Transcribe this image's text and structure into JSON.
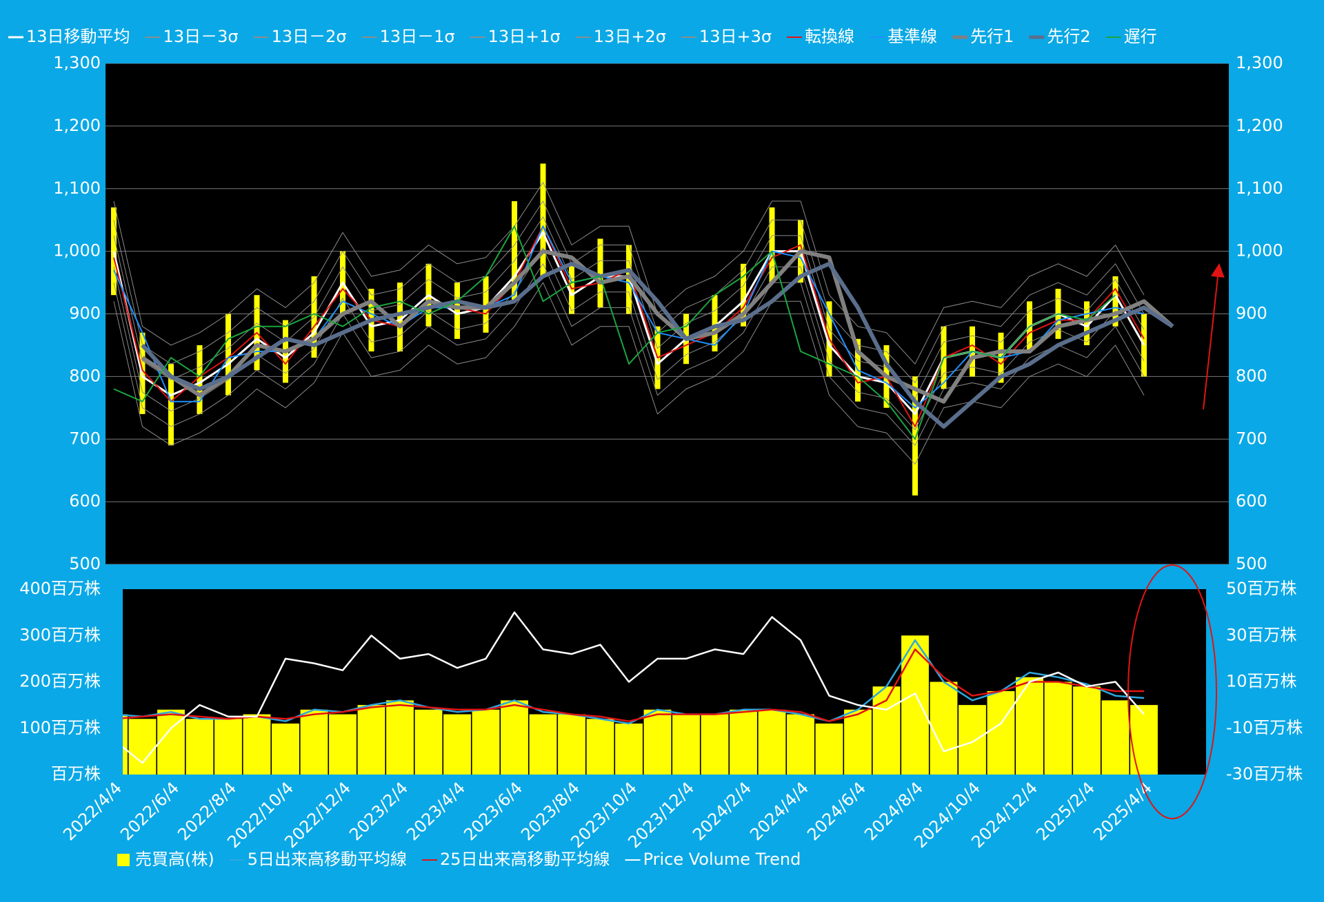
{
  "chart_data": [
    {
      "type": "line",
      "ylim": [
        500,
        1300
      ],
      "yticks": [
        500,
        600,
        700,
        800,
        900,
        {
          "value": 1000,
          "label": "1,000"
        },
        {
          "value": 1100,
          "label": "1,100"
        },
        {
          "value": 1200,
          "label": "1,200"
        },
        {
          "value": 1300,
          "label": "1,300"
        }
      ],
      "y2lim": [
        500,
        1300
      ],
      "y2ticks": [
        500,
        600,
        700,
        800,
        900,
        {
          "value": 1000,
          "label": "1,000"
        },
        {
          "value": 1100,
          "label": "1,100"
        },
        {
          "value": 1200,
          "label": "1,200"
        },
        {
          "value": 1300,
          "label": "1,300"
        }
      ],
      "grid": true,
      "candles": {
        "color": "#ffff00",
        "high": [
          1070,
          870,
          820,
          850,
          900,
          930,
          890,
          960,
          1000,
          940,
          950,
          980,
          950,
          960,
          1080,
          1140,
          980,
          1020,
          1010,
          880,
          900,
          930,
          980,
          1070,
          1050,
          920,
          860,
          850,
          800,
          880,
          880,
          870,
          920,
          940,
          920,
          960,
          900,
          null
        ],
        "low": [
          930,
          740,
          690,
          740,
          770,
          810,
          790,
          830,
          900,
          840,
          840,
          880,
          860,
          870,
          920,
          960,
          900,
          910,
          900,
          780,
          820,
          840,
          880,
          950,
          950,
          800,
          760,
          750,
          610,
          780,
          800,
          790,
          840,
          860,
          850,
          880,
          800,
          null
        ]
      },
      "series": [
        {
          "name": "13日移動平均",
          "color": "#ffffff",
          "width": 3,
          "values": [
            1000,
            800,
            770,
            790,
            820,
            860,
            830,
            870,
            950,
            880,
            890,
            930,
            900,
            910,
            960,
            1030,
            930,
            960,
            960,
            820,
            860,
            880,
            920,
            1000,
            1000,
            850,
            800,
            790,
            740,
            830,
            840,
            830,
            880,
            900,
            880,
            930,
            850,
            null
          ]
        },
        {
          "name": "13日－3σ",
          "color": "#8c8c8c",
          "width": 1,
          "values": [
            920,
            720,
            690,
            710,
            740,
            780,
            750,
            790,
            870,
            800,
            810,
            850,
            820,
            830,
            880,
            950,
            850,
            880,
            880,
            740,
            780,
            800,
            840,
            920,
            920,
            770,
            720,
            710,
            660,
            750,
            760,
            750,
            800,
            820,
            800,
            850,
            770,
            null
          ]
        },
        {
          "name": "13日－2σ",
          "color": "#8c8c8c",
          "width": 1,
          "values": [
            950,
            750,
            720,
            740,
            770,
            810,
            780,
            820,
            900,
            830,
            840,
            880,
            850,
            860,
            910,
            980,
            880,
            910,
            910,
            770,
            810,
            830,
            870,
            950,
            950,
            800,
            750,
            740,
            690,
            780,
            790,
            780,
            830,
            850,
            830,
            880,
            800,
            null
          ]
        },
        {
          "name": "13日－1σ",
          "color": "#8c8c8c",
          "width": 1,
          "values": [
            975,
            775,
            745,
            765,
            795,
            835,
            805,
            845,
            925,
            855,
            865,
            905,
            875,
            885,
            935,
            1005,
            905,
            935,
            935,
            795,
            835,
            855,
            895,
            975,
            975,
            825,
            775,
            765,
            715,
            805,
            815,
            805,
            855,
            875,
            855,
            905,
            825,
            null
          ]
        },
        {
          "name": "13日+1σ",
          "color": "#8c8c8c",
          "width": 1,
          "values": [
            1025,
            825,
            795,
            815,
            845,
            885,
            855,
            895,
            975,
            905,
            915,
            955,
            925,
            935,
            985,
            1055,
            955,
            985,
            985,
            845,
            885,
            905,
            945,
            1025,
            1025,
            875,
            825,
            815,
            765,
            855,
            865,
            855,
            905,
            925,
            905,
            955,
            875,
            null
          ]
        },
        {
          "name": "13日+2σ",
          "color": "#8c8c8c",
          "width": 1,
          "values": [
            1050,
            850,
            820,
            840,
            870,
            910,
            880,
            920,
            1000,
            930,
            940,
            980,
            950,
            960,
            1010,
            1080,
            980,
            1010,
            1010,
            870,
            910,
            930,
            970,
            1050,
            1050,
            900,
            850,
            840,
            790,
            880,
            890,
            880,
            930,
            950,
            930,
            980,
            900,
            null
          ]
        },
        {
          "name": "13日+3σ",
          "color": "#8c8c8c",
          "width": 1,
          "values": [
            1080,
            880,
            850,
            870,
            900,
            940,
            910,
            950,
            1030,
            960,
            970,
            1010,
            980,
            990,
            1040,
            1110,
            1010,
            1040,
            1040,
            900,
            940,
            960,
            1000,
            1080,
            1080,
            930,
            880,
            870,
            820,
            910,
            920,
            910,
            960,
            980,
            960,
            1010,
            930,
            null
          ]
        },
        {
          "name": "転換線",
          "color": "#e01414",
          "width": 2,
          "values": [
            990,
            810,
            760,
            800,
            830,
            870,
            820,
            880,
            940,
            890,
            880,
            920,
            910,
            900,
            950,
            1040,
            940,
            950,
            970,
            830,
            850,
            870,
            910,
            990,
            1010,
            860,
            790,
            800,
            720,
            830,
            850,
            820,
            870,
            890,
            890,
            940,
            860,
            null
          ]
        },
        {
          "name": "基準線",
          "color": "#1e90ff",
          "width": 2,
          "values": [
            970,
            870,
            760,
            760,
            830,
            840,
            840,
            860,
            920,
            900,
            880,
            910,
            910,
            910,
            930,
            1040,
            950,
            960,
            950,
            870,
            860,
            850,
            900,
            1000,
            990,
            900,
            810,
            790,
            750,
            790,
            840,
            830,
            840,
            890,
            900,
            910,
            900,
            null
          ]
        },
        {
          "name": "先行1",
          "color": "#808080",
          "width": 6,
          "values": [
            null,
            830,
            800,
            770,
            800,
            850,
            840,
            860,
            900,
            920,
            880,
            920,
            910,
            910,
            950,
            1000,
            990,
            950,
            960,
            900,
            860,
            870,
            900,
            950,
            1000,
            990,
            840,
            800,
            780,
            760,
            830,
            840,
            840,
            880,
            890,
            900,
            920,
            880
          ]
        },
        {
          "name": "先行2",
          "color": "#5a6e8c",
          "width": 6,
          "values": [
            null,
            850,
            800,
            780,
            800,
            830,
            860,
            850,
            870,
            890,
            900,
            910,
            920,
            910,
            920,
            960,
            980,
            960,
            970,
            920,
            860,
            880,
            890,
            920,
            960,
            980,
            910,
            820,
            760,
            720,
            760,
            800,
            820,
            850,
            870,
            890,
            910,
            880
          ]
        },
        {
          "name": "遅行",
          "color": "#1aa640",
          "width": 2,
          "values": [
            780,
            760,
            830,
            800,
            860,
            880,
            880,
            900,
            880,
            910,
            920,
            900,
            920,
            960,
            1040,
            920,
            950,
            960,
            820,
            870,
            880,
            930,
            960,
            1000,
            840,
            820,
            800,
            760,
            700,
            830,
            840,
            830,
            880,
            900,
            890,
            930,
            null,
            null
          ]
        }
      ]
    },
    {
      "type": "bar",
      "categories": [
        "2022/4/4",
        null,
        "2022/6/4",
        null,
        "2022/8/4",
        null,
        "2022/10/4",
        null,
        "2022/12/4",
        null,
        "2023/2/4",
        null,
        "2023/4/4",
        null,
        "2023/6/4",
        null,
        "2023/8/4",
        null,
        "2023/10/4",
        null,
        "2023/12/4",
        null,
        "2024/2/4",
        null,
        "2024/4/4",
        null,
        "2024/6/4",
        null,
        "2024/8/4",
        null,
        "2024/10/4",
        null,
        "2024/12/4",
        null,
        "2025/2/4",
        null,
        "2025/4/4",
        null
      ],
      "ylim": [
        0,
        400
      ],
      "yticks": [
        {
          "value": 0,
          "label": "百万株"
        },
        {
          "value": 100,
          "label": "100百万株"
        },
        {
          "value": 200,
          "label": "200百万株"
        },
        {
          "value": 300,
          "label": "300百万株"
        },
        {
          "value": 400,
          "label": "400百万株"
        }
      ],
      "y2lim": [
        -30,
        50
      ],
      "y2ticks": [
        {
          "value": -30,
          "label": "-30百万株"
        },
        {
          "value": -10,
          "label": "-10百万株"
        },
        {
          "value": 10,
          "label": "10百万株"
        },
        {
          "value": 30,
          "label": "30百万株"
        },
        {
          "value": 50,
          "label": "50百万株"
        }
      ],
      "series": [
        {
          "name": "売買高(株)",
          "type": "bar",
          "color": "#ffff00",
          "values": [
            130,
            120,
            140,
            120,
            120,
            130,
            110,
            140,
            130,
            150,
            160,
            140,
            130,
            140,
            160,
            130,
            130,
            120,
            110,
            140,
            130,
            130,
            140,
            140,
            130,
            110,
            140,
            190,
            300,
            200,
            150,
            180,
            210,
            200,
            190,
            160,
            150,
            null
          ]
        },
        {
          "name": "5日出来高移動平均線",
          "type": "line",
          "color": "#2ea8e0",
          "values": [
            130,
            125,
            135,
            120,
            120,
            125,
            115,
            140,
            135,
            150,
            160,
            145,
            135,
            140,
            160,
            135,
            130,
            120,
            110,
            140,
            130,
            130,
            140,
            140,
            130,
            115,
            140,
            190,
            290,
            200,
            160,
            180,
            220,
            210,
            195,
            170,
            165,
            null
          ]
        },
        {
          "name": "25日出来高移動平均線",
          "type": "line",
          "color": "#e01414",
          "values": [
            120,
            125,
            130,
            125,
            120,
            125,
            120,
            130,
            135,
            145,
            150,
            145,
            140,
            140,
            150,
            140,
            130,
            125,
            115,
            130,
            130,
            130,
            135,
            140,
            135,
            115,
            130,
            160,
            270,
            210,
            170,
            180,
            200,
            200,
            190,
            180,
            180,
            null
          ]
        },
        {
          "name": "Price Volume Trend",
          "type": "line",
          "axis": "y2",
          "color": "#ffffff",
          "values": [
            -15,
            -25,
            -10,
            0,
            -5,
            -5,
            20,
            18,
            15,
            30,
            20,
            22,
            16,
            20,
            40,
            24,
            22,
            26,
            10,
            20,
            20,
            24,
            22,
            38,
            28,
            4,
            0,
            -2,
            5,
            -20,
            -16,
            -8,
            10,
            14,
            8,
            10,
            -4,
            null
          ]
        }
      ]
    }
  ]
}
